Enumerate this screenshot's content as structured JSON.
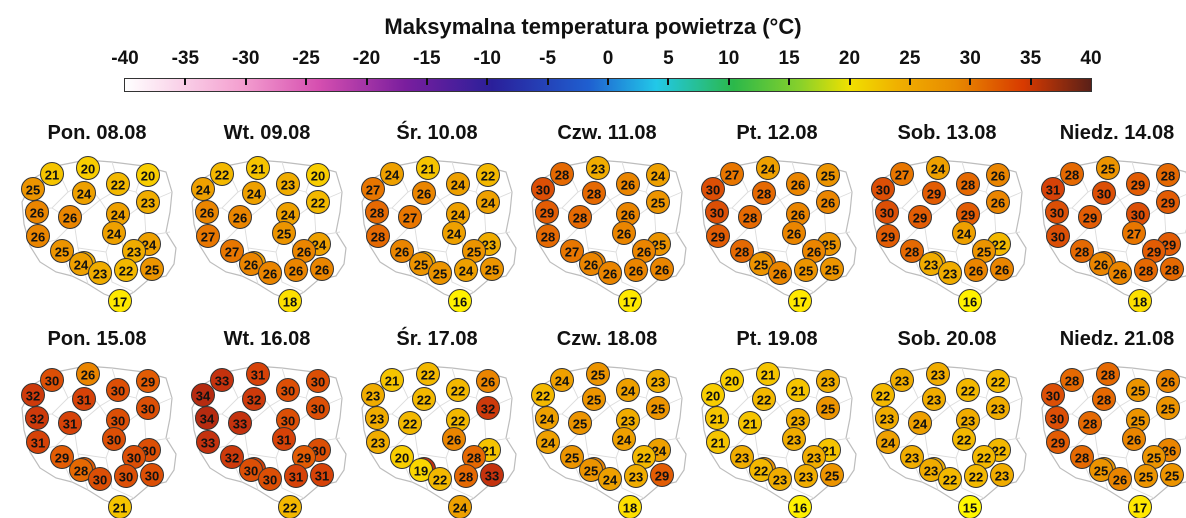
{
  "title": "Maksymalna temperatura powietrza (°C)",
  "scale": {
    "ticks": [
      "-40",
      "-35",
      "-30",
      "-25",
      "-20",
      "-15",
      "-10",
      "-5",
      "0",
      "5",
      "10",
      "15",
      "20",
      "25",
      "30",
      "35",
      "40"
    ],
    "colors": [
      "#ffffff",
      "#f4a0d0",
      "#d64fb0",
      "#7a1e9e",
      "#2a1f9a",
      "#1f5fd0",
      "#22c8e8",
      "#2bb84a",
      "#8ad12a",
      "#f0e000",
      "#f0b000",
      "#e88a00",
      "#d83a00",
      "#5a2018"
    ]
  },
  "days": [
    {
      "date": "Pon. 08.08",
      "values": [
        21,
        20,
        20,
        22,
        23,
        25,
        24,
        24,
        26,
        26,
        24,
        26,
        24,
        25,
        23,
        23,
        24,
        23,
        22,
        25,
        17
      ]
    },
    {
      "date": "Wt. 09.08",
      "values": [
        22,
        21,
        20,
        23,
        22,
        24,
        24,
        24,
        26,
        26,
        25,
        27,
        24,
        27,
        26,
        24,
        26,
        26,
        26,
        26,
        18
      ]
    },
    {
      "date": "Śr. 10.08",
      "values": [
        24,
        21,
        22,
        24,
        24,
        27,
        26,
        24,
        28,
        27,
        24,
        28,
        23,
        26,
        25,
        23,
        25,
        25,
        24,
        25,
        16
      ]
    },
    {
      "date": "Czw. 11.08",
      "values": [
        28,
        23,
        24,
        26,
        25,
        30,
        28,
        26,
        29,
        28,
        26,
        28,
        25,
        27,
        26,
        26,
        26,
        26,
        26,
        26,
        17
      ]
    },
    {
      "date": "Pt. 12.08",
      "values": [
        27,
        24,
        25,
        26,
        26,
        30,
        28,
        26,
        30,
        28,
        26,
        29,
        25,
        28,
        26,
        27,
        25,
        26,
        25,
        25,
        17
      ]
    },
    {
      "date": "Sob. 13.08",
      "values": [
        27,
        24,
        26,
        28,
        26,
        30,
        29,
        29,
        30,
        29,
        24,
        29,
        22,
        28,
        25,
        23,
        23,
        23,
        26,
        26,
        16
      ]
    },
    {
      "date": "Niedz. 14.08",
      "values": [
        28,
        25,
        28,
        29,
        29,
        31,
        30,
        30,
        30,
        29,
        27,
        30,
        29,
        28,
        29,
        27,
        26,
        26,
        28,
        28,
        18
      ]
    },
    {
      "date": "Pon. 15.08",
      "values": [
        30,
        26,
        29,
        30,
        30,
        32,
        31,
        30,
        32,
        31,
        30,
        31,
        30,
        29,
        30,
        29,
        28,
        30,
        30,
        30,
        21
      ]
    },
    {
      "date": "Wt. 16.08",
      "values": [
        33,
        31,
        30,
        30,
        30,
        34,
        32,
        30,
        34,
        33,
        31,
        33,
        30,
        32,
        29,
        31,
        30,
        30,
        31,
        31,
        22
      ]
    },
    {
      "date": "Śr. 17.08",
      "values": [
        21,
        22,
        26,
        22,
        32,
        23,
        22,
        22,
        23,
        22,
        26,
        23,
        21,
        20,
        28,
        33,
        19,
        22,
        28,
        33,
        24
      ]
    },
    {
      "date": "Czw. 18.08",
      "values": [
        24,
        25,
        23,
        24,
        25,
        22,
        25,
        23,
        24,
        25,
        24,
        24,
        24,
        25,
        22,
        26,
        25,
        24,
        23,
        29,
        18
      ]
    },
    {
      "date": "Pt. 19.08",
      "values": [
        20,
        21,
        23,
        21,
        25,
        20,
        22,
        23,
        21,
        21,
        23,
        21,
        21,
        23,
        23,
        25,
        22,
        23,
        23,
        25,
        16
      ]
    },
    {
      "date": "Sob. 20.08",
      "values": [
        23,
        23,
        22,
        22,
        23,
        22,
        23,
        23,
        23,
        24,
        22,
        24,
        22,
        23,
        22,
        23,
        23,
        22,
        22,
        23,
        15
      ]
    },
    {
      "date": "Niedz. 21.08",
      "values": [
        28,
        28,
        26,
        25,
        25,
        30,
        28,
        25,
        30,
        28,
        26,
        29,
        26,
        28,
        25,
        25,
        25,
        26,
        25,
        25,
        17
      ]
    }
  ]
}
